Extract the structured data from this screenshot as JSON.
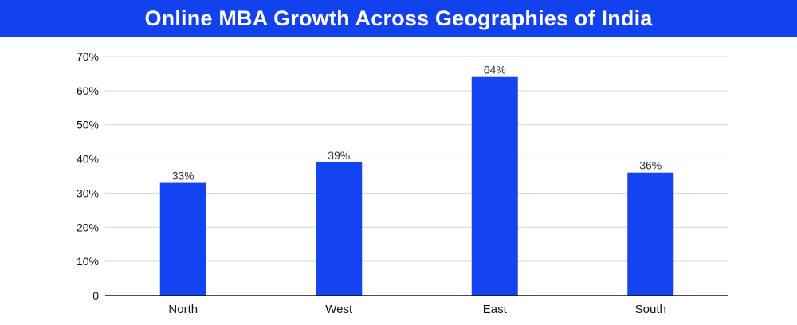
{
  "title": "Online MBA Growth Across Geographies of India",
  "colors": {
    "header_bg": "#1241ee",
    "bar": "#1444f2",
    "grid": "#d6d6d6",
    "axis": "#111111"
  },
  "chart_data": {
    "type": "bar",
    "title": "Online MBA Growth Across Geographies of India",
    "categories": [
      "North",
      "West",
      "East",
      "South"
    ],
    "values": [
      33,
      39,
      64,
      36
    ],
    "data_labels": [
      "33%",
      "39%",
      "64%",
      "36%"
    ],
    "yticks": [
      0,
      10,
      20,
      30,
      40,
      50,
      60,
      70
    ],
    "ytick_labels": [
      "0",
      "10%",
      "20%",
      "30%",
      "40%",
      "50%",
      "60%",
      "70%"
    ],
    "ylim": [
      0,
      70
    ],
    "grid": true,
    "legend": "none"
  }
}
